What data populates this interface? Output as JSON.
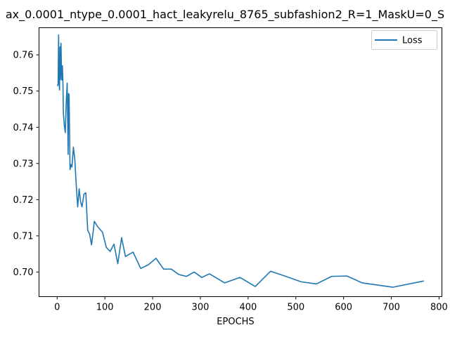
{
  "chart_data": {
    "type": "line",
    "title": "ax_0.0001_ntype_0.0001_hact_leakyrelu_8765_subfashion2_R=1_MaskU=0_S",
    "xlabel": "EPOCHS",
    "ylabel": "",
    "xlim": [
      -38,
      806
    ],
    "ylim": [
      0.6932,
      0.7675
    ],
    "xticks": [
      0,
      100,
      200,
      300,
      400,
      500,
      600,
      700,
      800
    ],
    "yticks": [
      0.7,
      0.71,
      0.72,
      0.73,
      0.74,
      0.75,
      0.76
    ],
    "ytick_labels": [
      "0.70",
      "0.71",
      "0.72",
      "0.73",
      "0.74",
      "0.75",
      "0.76"
    ],
    "legend_position": "top-right",
    "series": [
      {
        "name": "Loss",
        "color": "#1f77b4",
        "x": [
          1,
          2,
          3,
          4,
          5,
          6,
          7,
          8,
          9,
          10,
          11,
          12,
          13,
          15,
          17,
          19,
          21,
          23,
          24,
          25,
          27,
          29,
          31,
          34,
          37,
          40,
          43,
          46,
          49,
          52,
          56,
          60,
          64,
          68,
          72,
          78,
          85,
          95,
          103,
          111,
          119,
          127,
          135,
          143,
          159,
          175,
          191,
          207,
          223,
          239,
          255,
          271,
          287,
          303,
          319,
          351,
          383,
          415,
          447,
          479,
          511,
          543,
          575,
          607,
          639,
          703,
          767
        ],
        "y": [
          0.7515,
          0.752,
          0.7655,
          0.7525,
          0.7503,
          0.7622,
          0.7532,
          0.7632,
          0.756,
          0.753,
          0.757,
          0.753,
          0.744,
          0.7405,
          0.7385,
          0.747,
          0.7522,
          0.7325,
          0.7493,
          0.749,
          0.7283,
          0.7297,
          0.729,
          0.7345,
          0.731,
          0.724,
          0.718,
          0.723,
          0.7195,
          0.718,
          0.7215,
          0.7219,
          0.7115,
          0.7105,
          0.7075,
          0.714,
          0.7125,
          0.711,
          0.7068,
          0.7057,
          0.7077,
          0.7023,
          0.7095,
          0.7043,
          0.7055,
          0.701,
          0.702,
          0.7038,
          0.7008,
          0.7008,
          0.6993,
          0.6988,
          0.7,
          0.6985,
          0.6995,
          0.697,
          0.6985,
          0.696,
          0.7002,
          0.6988,
          0.6973,
          0.6967,
          0.6988,
          0.6989,
          0.697,
          0.6958,
          0.6975
        ]
      }
    ]
  }
}
